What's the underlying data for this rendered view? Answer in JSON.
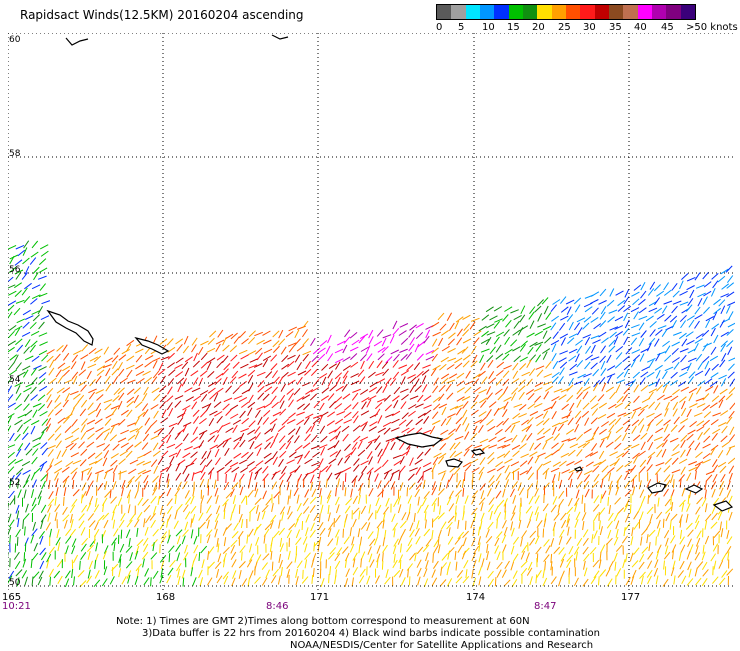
{
  "title": "Rapidsact Winds(12.5KM) 20160204 ascending",
  "legend": {
    "colors": [
      "#5a5a5a",
      "#a0a0a0",
      "#00e5ff",
      "#0096ff",
      "#0030ff",
      "#00c000",
      "#109010",
      "#ffe000",
      "#ffa000",
      "#ff5000",
      "#ff1a1a",
      "#c00000",
      "#8b4a20",
      "#c07050",
      "#ff00ff",
      "#b000b0",
      "#800080",
      "#3a007a"
    ],
    "labels": [
      "0",
      "5",
      "10",
      "15",
      "20",
      "25",
      "30",
      "35",
      "40",
      "45",
      ">50 knots"
    ]
  },
  "map": {
    "latitudes": [
      "60",
      "58",
      "56",
      "54",
      "52",
      "50"
    ],
    "longitudes": [
      "165",
      "168",
      "171",
      "174",
      "177"
    ],
    "times": [
      "10:21",
      "8:46",
      "8:47"
    ]
  },
  "notes": {
    "line1": "Note: 1) Times are GMT 2)Times along bottom correspond to measurement at 60N",
    "line2": "3)Data buffer is 22 hrs from 20160204 4) Black wind barbs indicate possible contamination",
    "line3": "NOAA/NESDIS/Center for Satellite Applications and Research"
  }
}
